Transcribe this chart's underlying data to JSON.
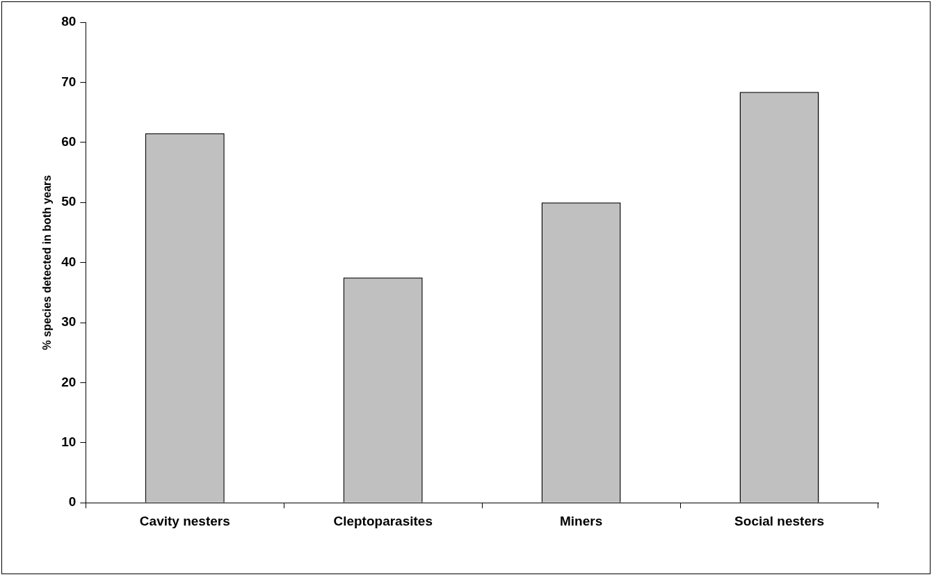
{
  "chart_data": {
    "type": "bar",
    "ylabel": "% species detected in both years",
    "categories": [
      "Cavity nesters",
      "Cleptoparasites",
      "Miners",
      "Social nesters"
    ],
    "values": [
      61.5,
      37.5,
      50,
      68.4
    ],
    "color": "#c0c0c0",
    "ylim": [
      0,
      80
    ],
    "yticks": [
      0,
      10,
      20,
      30,
      40,
      50,
      60,
      70,
      80
    ],
    "grid": false,
    "legend": false
  }
}
